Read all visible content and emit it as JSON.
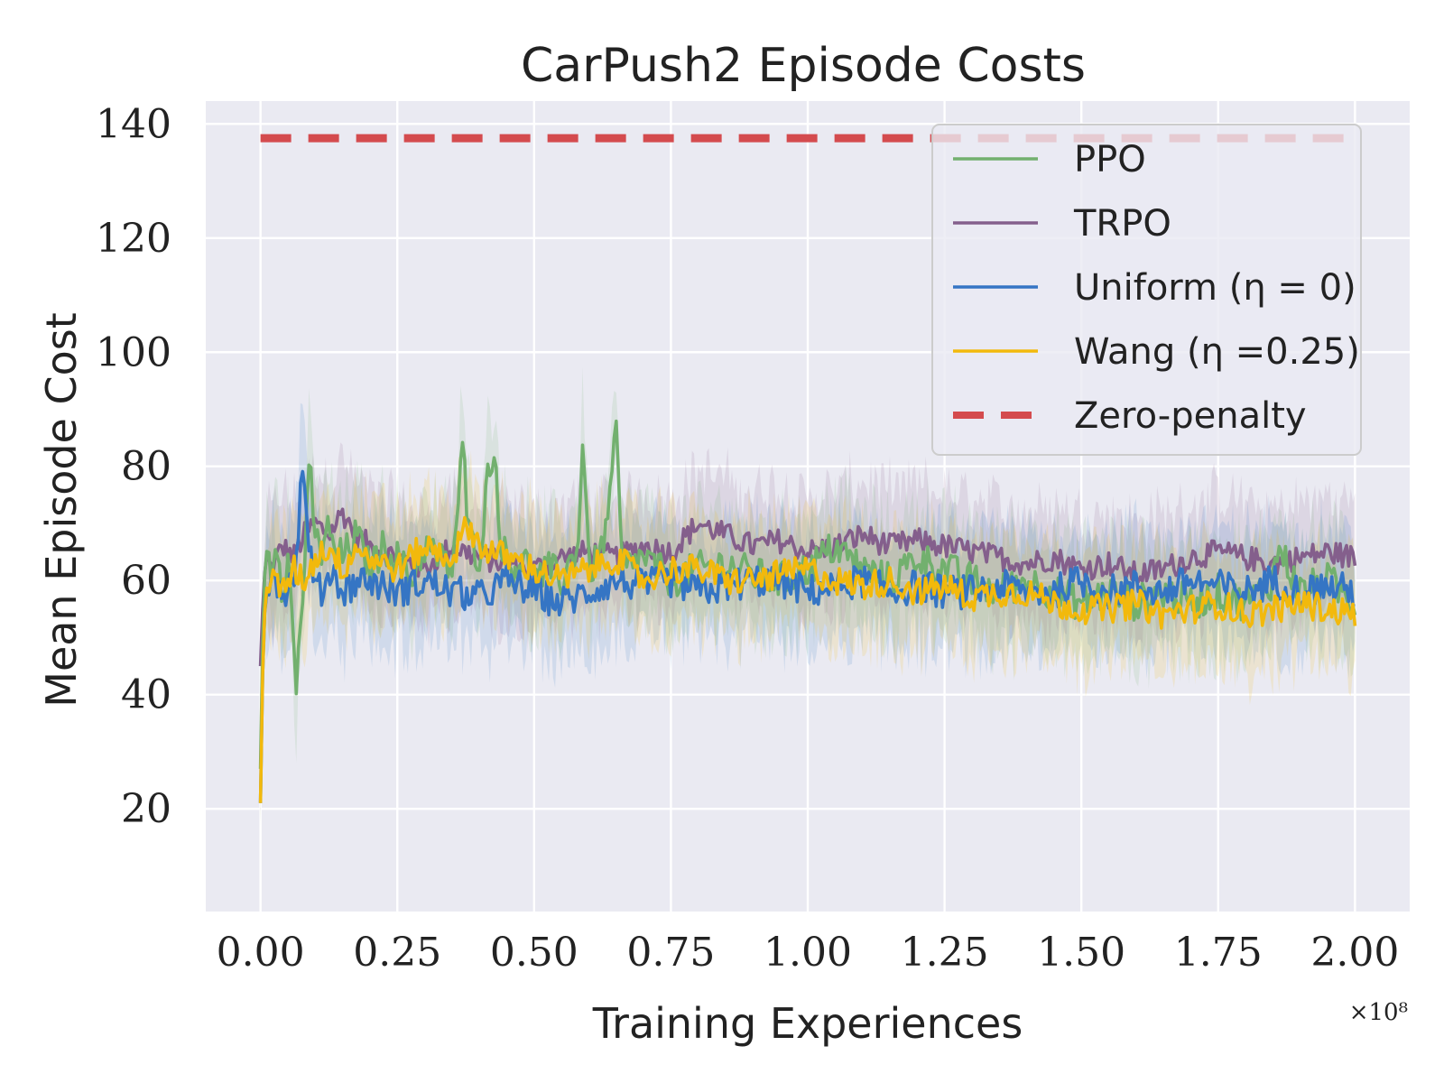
{
  "chart_data": {
    "type": "line",
    "title": "CarPush2 Episode Costs",
    "xlabel": "Training Experiences",
    "ylabel": "Mean Episode Cost",
    "x_multiplier": "×10⁸",
    "xlim": [
      -0.1,
      2.1
    ],
    "ylim": [
      2,
      144
    ],
    "xticks": [
      0.0,
      0.25,
      0.5,
      0.75,
      1.0,
      1.25,
      1.5,
      1.75,
      2.0
    ],
    "xtick_labels": [
      "0.00",
      "0.25",
      "0.50",
      "0.75",
      "1.00",
      "1.25",
      "1.50",
      "1.75",
      "2.00"
    ],
    "yticks": [
      20,
      40,
      60,
      80,
      100,
      120,
      140
    ],
    "ytick_labels": [
      "20",
      "40",
      "60",
      "80",
      "100",
      "120",
      "140"
    ],
    "grid": true,
    "legend_position": "top-right",
    "series": [
      {
        "name": "PPO",
        "color": "#72b06e",
        "x": [
          0.0,
          0.005,
          0.01,
          0.02,
          0.03,
          0.04,
          0.05,
          0.06,
          0.065,
          0.07,
          0.08,
          0.09,
          0.1,
          0.11,
          0.12,
          0.13,
          0.15,
          0.175,
          0.2,
          0.225,
          0.25,
          0.275,
          0.3,
          0.325,
          0.35,
          0.36,
          0.37,
          0.38,
          0.4,
          0.42,
          0.43,
          0.44,
          0.46,
          0.48,
          0.5,
          0.53,
          0.55,
          0.58,
          0.59,
          0.6,
          0.62,
          0.64,
          0.65,
          0.66,
          0.7,
          0.75,
          0.8,
          0.85,
          0.9,
          0.95,
          1.0,
          1.05,
          1.1,
          1.15,
          1.2,
          1.25,
          1.3,
          1.35,
          1.4,
          1.45,
          1.5,
          1.55,
          1.6,
          1.65,
          1.7,
          1.75,
          1.8,
          1.85,
          1.86,
          1.9,
          1.95,
          2.0
        ],
        "y": [
          27,
          55,
          66,
          62,
          68,
          58,
          64,
          50,
          41,
          48,
          62,
          80,
          68,
          64,
          70,
          66,
          64,
          68,
          62,
          66,
          64,
          60,
          66,
          64,
          62,
          72,
          84,
          68,
          64,
          82,
          80,
          66,
          62,
          64,
          60,
          62,
          60,
          66,
          86,
          62,
          64,
          74,
          88,
          62,
          64,
          60,
          62,
          63,
          61,
          60,
          62,
          66,
          62,
          60,
          64,
          62,
          60,
          58,
          60,
          58,
          56,
          58,
          56,
          58,
          56,
          58,
          56,
          60,
          66,
          58,
          60,
          56
        ]
      },
      {
        "name": "TRPO",
        "color": "#845f8c",
        "x": [
          0.0,
          0.005,
          0.01,
          0.02,
          0.04,
          0.06,
          0.08,
          0.1,
          0.125,
          0.15,
          0.175,
          0.2,
          0.25,
          0.3,
          0.35,
          0.4,
          0.45,
          0.5,
          0.55,
          0.6,
          0.65,
          0.7,
          0.75,
          0.8,
          0.85,
          0.9,
          0.95,
          1.0,
          1.05,
          1.1,
          1.15,
          1.2,
          1.25,
          1.3,
          1.35,
          1.4,
          1.45,
          1.5,
          1.55,
          1.6,
          1.65,
          1.7,
          1.75,
          1.8,
          1.85,
          1.9,
          1.95,
          2.0
        ],
        "y": [
          45,
          58,
          64,
          62,
          66,
          64,
          68,
          70,
          68,
          72,
          68,
          66,
          64,
          62,
          66,
          64,
          63,
          62,
          64,
          65,
          64,
          66,
          65,
          70,
          68,
          66,
          67,
          65,
          66,
          68,
          66,
          67,
          66,
          65,
          64,
          63,
          64,
          62,
          63,
          61,
          62,
          64,
          65,
          64,
          63,
          64,
          65,
          64
        ]
      },
      {
        "name": "Uniform (η = 0)",
        "color": "#3575c4",
        "x": [
          0.0,
          0.005,
          0.01,
          0.02,
          0.04,
          0.06,
          0.07,
          0.075,
          0.085,
          0.095,
          0.11,
          0.13,
          0.15,
          0.175,
          0.2,
          0.25,
          0.3,
          0.35,
          0.4,
          0.45,
          0.5,
          0.55,
          0.6,
          0.65,
          0.7,
          0.75,
          0.8,
          0.85,
          0.9,
          0.95,
          1.0,
          1.05,
          1.1,
          1.15,
          1.2,
          1.25,
          1.3,
          1.35,
          1.4,
          1.45,
          1.5,
          1.55,
          1.6,
          1.65,
          1.7,
          1.75,
          1.8,
          1.85,
          1.9,
          1.95,
          2.0
        ],
        "y": [
          21,
          50,
          58,
          62,
          58,
          60,
          70,
          79,
          72,
          60,
          58,
          62,
          58,
          60,
          60,
          58,
          60,
          58,
          57,
          60,
          58,
          56,
          58,
          60,
          59,
          60,
          58,
          59,
          60,
          60,
          58,
          59,
          60,
          58,
          59,
          58,
          58,
          59,
          58,
          58,
          60,
          58,
          59,
          58,
          60,
          59,
          58,
          60,
          58,
          59,
          58
        ]
      },
      {
        "name": "Wang (η =0.25)",
        "color": "#f2b90c",
        "x": [
          0.0,
          0.005,
          0.01,
          0.02,
          0.04,
          0.06,
          0.08,
          0.1,
          0.125,
          0.15,
          0.175,
          0.2,
          0.25,
          0.3,
          0.35,
          0.38,
          0.4,
          0.45,
          0.5,
          0.55,
          0.6,
          0.65,
          0.7,
          0.75,
          0.8,
          0.85,
          0.9,
          0.95,
          1.0,
          1.05,
          1.1,
          1.15,
          1.2,
          1.25,
          1.3,
          1.35,
          1.4,
          1.45,
          1.5,
          1.55,
          1.6,
          1.65,
          1.7,
          1.75,
          1.8,
          1.85,
          1.9,
          1.95,
          2.0
        ],
        "y": [
          21,
          50,
          58,
          60,
          58,
          62,
          60,
          64,
          66,
          62,
          66,
          64,
          62,
          66,
          64,
          70,
          66,
          64,
          62,
          60,
          62,
          64,
          60,
          62,
          62,
          60,
          60,
          61,
          62,
          60,
          59,
          60,
          58,
          59,
          57,
          58,
          58,
          56,
          55,
          55,
          56,
          54,
          55,
          56,
          54,
          55,
          56,
          55,
          54
        ]
      },
      {
        "name": "Zero-penalty",
        "color": "#d44b4e",
        "dashed": true,
        "x": [
          0.0,
          2.0
        ],
        "y": [
          137.5,
          137.5
        ]
      }
    ]
  }
}
